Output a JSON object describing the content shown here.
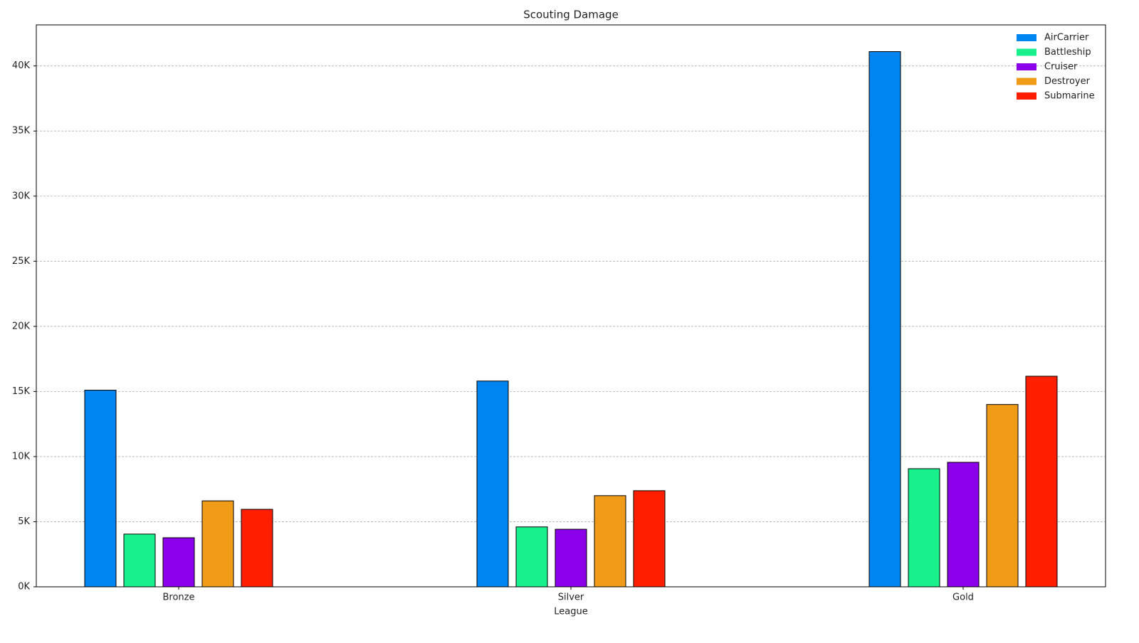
{
  "chart_data": {
    "type": "bar",
    "title": "Scouting Damage",
    "x_label": "League",
    "categories": [
      "Bronze",
      "Silver",
      "Gold"
    ],
    "series": [
      {
        "name": "AirCarrier",
        "color": "#0084f0",
        "values": [
          15100,
          15800,
          41100
        ]
      },
      {
        "name": "Battleship",
        "color": "#17f08b",
        "values": [
          4050,
          4600,
          9070
        ]
      },
      {
        "name": "Cruiser",
        "color": "#8b00e9",
        "values": [
          3770,
          4420,
          9560
        ]
      },
      {
        "name": "Destroyer",
        "color": "#f09c19",
        "values": [
          6600,
          7000,
          14000
        ]
      },
      {
        "name": "Submarine",
        "color": "#ff1f00",
        "values": [
          5950,
          7380,
          16170
        ]
      }
    ],
    "ylim": [
      0,
      43150
    ],
    "yticks": [
      {
        "value": 0,
        "label": "0K"
      },
      {
        "value": 5000,
        "label": "5K"
      },
      {
        "value": 10000,
        "label": "10K"
      },
      {
        "value": 15000,
        "label": "15K"
      },
      {
        "value": 20000,
        "label": "20K"
      },
      {
        "value": 25000,
        "label": "25K"
      },
      {
        "value": 30000,
        "label": "30K"
      },
      {
        "value": 35000,
        "label": "35K"
      },
      {
        "value": 40000,
        "label": "40K"
      }
    ],
    "grid": true,
    "legend": "upper right"
  }
}
